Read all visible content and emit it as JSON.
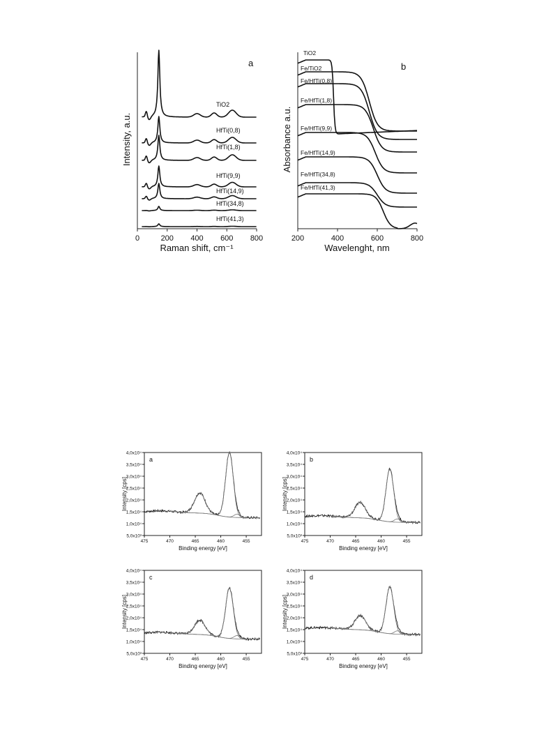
{
  "raman": {
    "panel": "a",
    "xlabel": "Raman shift, cm⁻¹",
    "ylabel": "Intensity, a.u.",
    "xticks": [
      "0",
      "200",
      "400",
      "600",
      "800"
    ],
    "series": [
      {
        "name": "TiO2",
        "peak": 10.0
      },
      {
        "name": "HfTi(0,8)",
        "peak": 4.6
      },
      {
        "name": "HfTi(1,8)",
        "peak": 4.4
      },
      {
        "name": "HfTi(9,9)",
        "peak": 3.4
      },
      {
        "name": "HfTi(14,9)",
        "peak": 2.6
      },
      {
        "name": "HfTi(34,8)",
        "peak": 0.5
      },
      {
        "name": "HfTi(41,3)",
        "peak": 0.2
      }
    ]
  },
  "absorbance": {
    "panel": "b",
    "xlabel": "Wavelenght, nm",
    "ylabel": "Absorbance a.u.",
    "xticks": [
      "200",
      "400",
      "600",
      "800"
    ],
    "series": [
      {
        "name": "TiO2"
      },
      {
        "name": "Fe/TiO2"
      },
      {
        "name": "Fe/HfTi(0,8)"
      },
      {
        "name": "Fe/HfTi(1,8)"
      },
      {
        "name": "Fe/HfTi(9,9)"
      },
      {
        "name": "Fe/HfTi(14,9)"
      },
      {
        "name": "Fe/HfTi(34,8)"
      },
      {
        "name": "Fe/HfTi(41,3)"
      }
    ]
  },
  "xps": {
    "xlabel": "Binding energy [eV]",
    "ylabel": "Intensity [cps]",
    "xticks": [
      "475",
      "470",
      "465",
      "460",
      "455"
    ],
    "yticks": [
      "5,0x10³",
      "1,0x10⁴",
      "1,5x10⁴",
      "2,0x10⁴",
      "2,5x10⁴",
      "3,0x10⁴",
      "3,5x10⁴",
      "4,0x10⁴"
    ],
    "panels": [
      {
        "label": "a",
        "main_peak": 40000,
        "secondary_peak": 23000,
        "background": 14500
      },
      {
        "label": "b",
        "main_peak": 33000,
        "secondary_peak": 19000,
        "background": 12500
      },
      {
        "label": "c",
        "main_peak": 32500,
        "secondary_peak": 19000,
        "background": 13000
      },
      {
        "label": "d",
        "main_peak": 33000,
        "secondary_peak": 21000,
        "background": 15000
      }
    ]
  },
  "chart_data": [
    {
      "type": "line",
      "panel": "a",
      "xlabel": "Raman shift, cm⁻¹",
      "ylabel": "Intensity, a.u.",
      "xlim": [
        0,
        800
      ],
      "series": [
        {
          "name": "TiO2",
          "peak_x": 144
        },
        {
          "name": "HfTi(0,8)",
          "peak_x": 144
        },
        {
          "name": "HfTi(1,8)",
          "peak_x": 144
        },
        {
          "name": "HfTi(9,9)",
          "peak_x": 144
        },
        {
          "name": "HfTi(14,9)",
          "peak_x": 144
        },
        {
          "name": "HfTi(34,8)",
          "peak_x": 144
        },
        {
          "name": "HfTi(41,3)",
          "peak_x": 144
        }
      ]
    },
    {
      "type": "line",
      "panel": "b",
      "xlabel": "Wavelenght, nm",
      "ylabel": "Absorbance a.u.",
      "xlim": [
        200,
        800
      ],
      "series": [
        {
          "name": "TiO2"
        },
        {
          "name": "Fe/TiO2"
        },
        {
          "name": "Fe/HfTi(0,8)"
        },
        {
          "name": "Fe/HfTi(1,8)"
        },
        {
          "name": "Fe/HfTi(9,9)"
        },
        {
          "name": "Fe/HfTi(14,9)"
        },
        {
          "name": "Fe/HfTi(34,8)"
        },
        {
          "name": "Fe/HfTi(41,3)"
        }
      ]
    },
    {
      "type": "line",
      "panel": "a",
      "xlabel": "Binding energy [eV]",
      "ylabel": "Intensity [cps]",
      "xlim": [
        475,
        452
      ],
      "ylim": [
        5000,
        40000
      ],
      "peaks_eV": [
        458.3,
        464.1
      ],
      "peak_intensity": [
        40000,
        23000
      ]
    },
    {
      "type": "line",
      "panel": "b",
      "xlabel": "Binding energy [eV]",
      "ylabel": "Intensity [cps]",
      "xlim": [
        475,
        452
      ],
      "ylim": [
        5000,
        40000
      ],
      "peaks_eV": [
        458.3,
        464.1
      ],
      "peak_intensity": [
        33000,
        19000
      ]
    },
    {
      "type": "line",
      "panel": "c",
      "xlabel": "Binding energy [eV]",
      "ylabel": "Intensity [cps]",
      "xlim": [
        475,
        452
      ],
      "ylim": [
        5000,
        40000
      ],
      "peaks_eV": [
        458.3,
        464.1
      ],
      "peak_intensity": [
        32500,
        19000
      ]
    },
    {
      "type": "line",
      "panel": "d",
      "xlabel": "Binding energy [eV]",
      "ylabel": "Intensity [cps]",
      "xlim": [
        475,
        452
      ],
      "ylim": [
        5000,
        40000
      ],
      "peaks_eV": [
        458.3,
        464.1
      ],
      "peak_intensity": [
        33000,
        21000
      ]
    }
  ]
}
